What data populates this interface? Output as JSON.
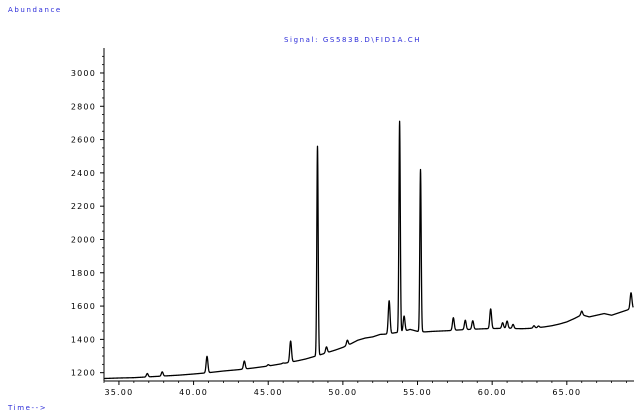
{
  "chart_data": {
    "type": "line",
    "title": "Signal: GS583B.D\\FID1A.CH",
    "ylabel": "Abundance",
    "xlabel": "Time-->",
    "xlim": [
      34.0,
      69.5
    ],
    "ylim": [
      1150,
      3150
    ],
    "xticks": [
      35,
      40,
      45,
      50,
      55,
      60,
      65
    ],
    "xtick_labels": [
      "35.00",
      "40.00",
      "45.00",
      "50.00",
      "55.00",
      "60.00",
      "65.00"
    ],
    "yticks": [
      1200,
      1400,
      1600,
      1800,
      2000,
      2200,
      2400,
      2600,
      2800,
      3000
    ],
    "ytick_labels": [
      "1200",
      "1400",
      "1600",
      "1800",
      "2000",
      "2200",
      "2400",
      "2600",
      "2800",
      "3000"
    ],
    "grid": false,
    "series": [
      {
        "x": [
          34.0,
          35.0,
          36.0,
          37.0,
          38.0,
          39.0,
          40.0,
          41.0,
          42.0,
          43.0,
          44.0,
          45.0,
          46.0,
          47.0,
          47.5,
          48.0,
          48.5,
          49.0,
          49.5,
          50.0,
          50.5,
          51.0,
          51.5,
          52.0,
          52.5,
          53.0,
          53.5,
          54.0,
          54.5,
          55.0,
          55.5,
          56.0,
          56.5,
          57.0,
          57.5,
          58.0,
          58.5,
          59.0,
          59.5,
          60.0,
          60.5,
          61.0,
          61.5,
          62.0,
          62.5,
          63.0,
          63.5,
          64.0,
          64.5,
          65.0,
          65.5,
          66.0,
          66.5,
          67.0,
          67.5,
          68.0,
          68.5,
          69.0,
          69.4
        ],
        "y": [
          1165,
          1168,
          1170,
          1175,
          1180,
          1185,
          1192,
          1200,
          1210,
          1218,
          1228,
          1240,
          1255,
          1272,
          1282,
          1295,
          1308,
          1322,
          1336,
          1352,
          1372,
          1395,
          1408,
          1415,
          1430,
          1432,
          1440,
          1445,
          1460,
          1448,
          1445,
          1448,
          1450,
          1452,
          1455,
          1458,
          1460,
          1462,
          1464,
          1465,
          1466,
          1468,
          1465,
          1464,
          1466,
          1470,
          1475,
          1482,
          1492,
          1505,
          1525,
          1548,
          1535,
          1545,
          1555,
          1545,
          1560,
          1575,
          1588
        ],
        "peaks": [
          {
            "rt": 36.9,
            "height": 1195
          },
          {
            "rt": 37.9,
            "height": 1205
          },
          {
            "rt": 40.9,
            "height": 1298
          },
          {
            "rt": 43.4,
            "height": 1270
          },
          {
            "rt": 45.0,
            "height": 1248
          },
          {
            "rt": 46.0,
            "height": 1258
          },
          {
            "rt": 46.5,
            "height": 1390
          },
          {
            "rt": 48.3,
            "height": 2560
          },
          {
            "rt": 48.9,
            "height": 1355
          },
          {
            "rt": 50.3,
            "height": 1395
          },
          {
            "rt": 53.1,
            "height": 1632
          },
          {
            "rt": 53.8,
            "height": 2710
          },
          {
            "rt": 54.1,
            "height": 1540
          },
          {
            "rt": 55.2,
            "height": 2420
          },
          {
            "rt": 57.4,
            "height": 1530
          },
          {
            "rt": 58.2,
            "height": 1515
          },
          {
            "rt": 58.7,
            "height": 1512
          },
          {
            "rt": 59.9,
            "height": 1583
          },
          {
            "rt": 60.7,
            "height": 1500
          },
          {
            "rt": 61.0,
            "height": 1510
          },
          {
            "rt": 61.4,
            "height": 1490
          },
          {
            "rt": 62.8,
            "height": 1482
          },
          {
            "rt": 63.1,
            "height": 1480
          },
          {
            "rt": 66.0,
            "height": 1570
          },
          {
            "rt": 69.3,
            "height": 1680
          }
        ]
      }
    ]
  }
}
